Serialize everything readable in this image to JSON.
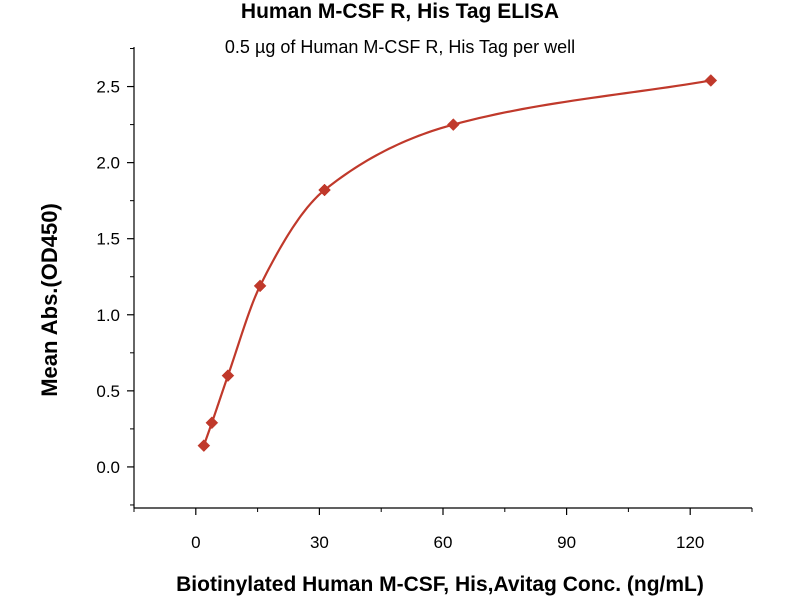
{
  "chart_data": {
    "type": "scatter",
    "title": "Human M-CSF R, His Tag ELISA",
    "subtitle": "0.5 µg of Human M-CSF R, His Tag per well",
    "xlabel": "Biotinylated Human M-CSF, His,Avitag Conc. (ng/mL)",
    "ylabel": "Mean Abs.(OD450)",
    "xlim": [
      -15,
      135
    ],
    "ylim": [
      -0.27,
      2.76
    ],
    "x_ticks": [
      0,
      30,
      60,
      90,
      120
    ],
    "x_tick_labels": [
      "0",
      "30",
      "60",
      "90",
      "120"
    ],
    "y_ticks": [
      0.0,
      0.5,
      1.0,
      1.5,
      2.0,
      2.5
    ],
    "y_tick_labels": [
      "0.0",
      "0.5",
      "1.0",
      "1.5",
      "2.0",
      "2.5"
    ],
    "grid": false,
    "series": [
      {
        "marker": "diamond",
        "color": "#c0392b",
        "points": [
          {
            "x": 1.95,
            "y": 0.14
          },
          {
            "x": 3.9,
            "y": 0.29
          },
          {
            "x": 7.8,
            "y": 0.6
          },
          {
            "x": 15.6,
            "y": 1.19
          },
          {
            "x": 31.25,
            "y": 1.82
          },
          {
            "x": 62.5,
            "y": 2.25
          },
          {
            "x": 125,
            "y": 2.54
          }
        ],
        "fit": {
          "type": "curve",
          "color": "#c0392b"
        }
      }
    ]
  }
}
